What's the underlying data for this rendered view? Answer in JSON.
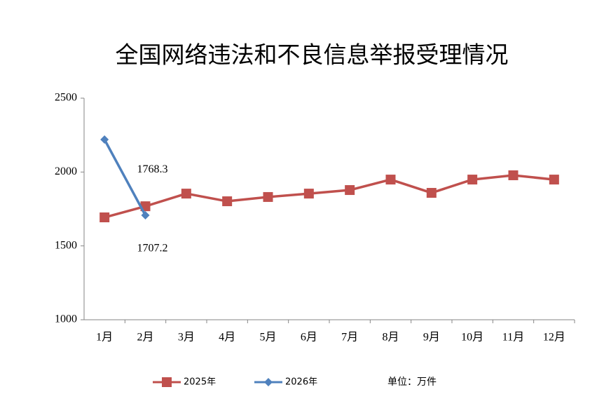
{
  "chart_data": {
    "type": "line",
    "title": "全国网络违法和不良信息举报受理情况",
    "categories": [
      "1月",
      "2月",
      "3月",
      "4月",
      "5月",
      "6月",
      "7月",
      "8月",
      "9月",
      "10月",
      "11月",
      "12月"
    ],
    "series": [
      {
        "name": "2025年",
        "color": "#c0504d",
        "marker": "square",
        "values": [
          1693,
          1768.3,
          1854,
          1802,
          1831,
          1854,
          1878,
          1949,
          1859,
          1949,
          1978,
          1949
        ],
        "value_labels": [
          null,
          "1768.3",
          null,
          null,
          null,
          null,
          null,
          null,
          null,
          null,
          null,
          null
        ]
      },
      {
        "name": "2026年",
        "color": "#4f81bd",
        "marker": "diamond",
        "values": [
          2220,
          1707.2,
          null,
          null,
          null,
          null,
          null,
          null,
          null,
          null,
          null,
          null
        ],
        "value_labels": [
          null,
          "1707.2",
          null,
          null,
          null,
          null,
          null,
          null,
          null,
          null,
          null,
          null
        ]
      }
    ],
    "ylim": [
      1000,
      2500
    ],
    "yticks": [
      1000,
      1500,
      2000,
      2500
    ],
    "grid": false,
    "legend": "bottom",
    "annotation": "单位：万件"
  }
}
